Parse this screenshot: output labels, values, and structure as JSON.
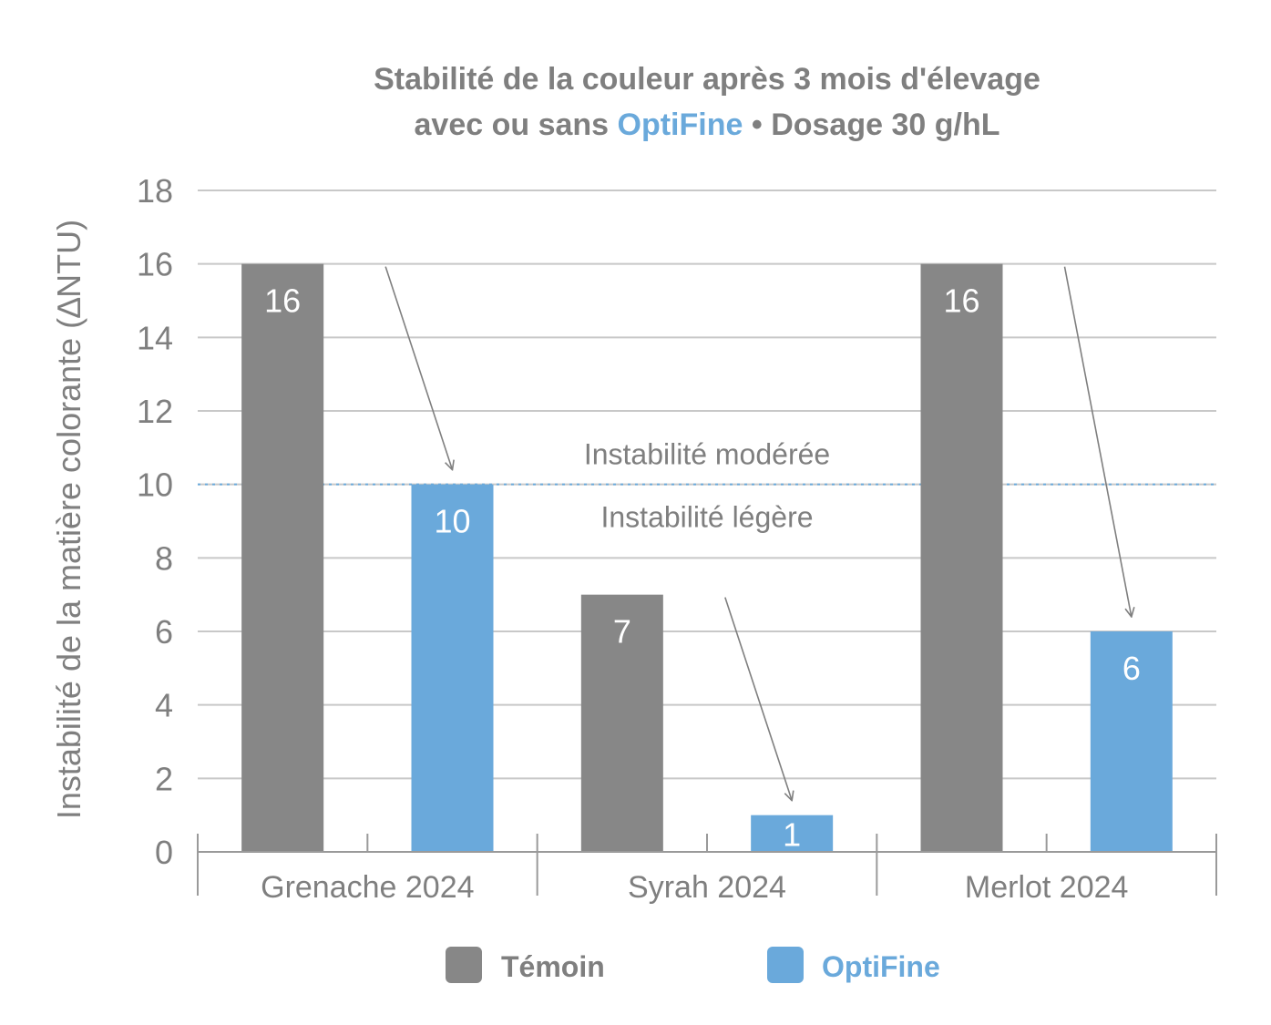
{
  "title": {
    "line1": "Stabilité de la couleur après 3 mois d'élevage",
    "line2_prefix": "avec ou sans ",
    "line2_brand": "OptiFine",
    "line2_suffix": " • Dosage 30 g/hL"
  },
  "colors": {
    "temoin": "#878787",
    "optifine": "#6aa9db",
    "grid": "#c8c8c8",
    "axis": "#9a9a9a",
    "text": "#7f7f7f",
    "threshold": "#6aa9db",
    "arrow": "#7f7f7f"
  },
  "chart_data": {
    "type": "bar",
    "ylabel": "Instabilité de la matière colorante (∆NTU)",
    "ylim": [
      0,
      18
    ],
    "yticks": [
      0,
      2,
      4,
      6,
      8,
      10,
      12,
      14,
      16,
      18
    ],
    "grid": true,
    "categories": [
      "Grenache 2024",
      "Syrah 2024",
      "Merlot 2024"
    ],
    "series": [
      {
        "name": "Témoin",
        "values": [
          16,
          7,
          16
        ]
      },
      {
        "name": "OptiFine",
        "values": [
          10,
          1,
          6
        ]
      }
    ],
    "threshold": {
      "value": 10,
      "label_above": "Instabilité modérée",
      "label_below": "Instabilité légère"
    },
    "legend_position": "bottom"
  }
}
